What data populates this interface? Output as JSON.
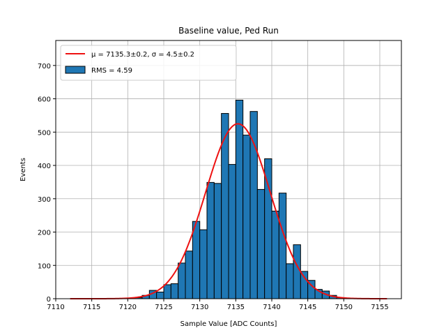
{
  "chart_data": {
    "type": "bar",
    "title": "Baseline value, Ped Run",
    "xlabel": "Sample Value [ADC Counts]",
    "ylabel": "Events",
    "xlim": [
      7110,
      7158
    ],
    "ylim": [
      0,
      775
    ],
    "xticks": [
      7110,
      7115,
      7120,
      7125,
      7130,
      7135,
      7140,
      7145,
      7150,
      7155
    ],
    "yticks": [
      0,
      100,
      200,
      300,
      400,
      500,
      600,
      700
    ],
    "grid": true,
    "legend_position": "top-left",
    "bin_width": 1,
    "bins": [
      7121,
      7122,
      7123,
      7124,
      7125,
      7126,
      7127,
      7128,
      7129,
      7130,
      7131,
      7132,
      7133,
      7134,
      7135,
      7136,
      7137,
      7138,
      7139,
      7140,
      7141,
      7142,
      7143,
      7144,
      7145,
      7146,
      7147,
      7148,
      7149
    ],
    "counts": [
      3,
      10,
      25,
      20,
      42,
      45,
      107,
      143,
      232,
      207,
      349,
      346,
      556,
      403,
      596,
      491,
      562,
      328,
      420,
      263,
      317,
      105,
      162,
      82,
      55,
      28,
      23,
      10,
      3
    ],
    "fit": {
      "mu": 7135.3,
      "sigma": 4.5,
      "peak": 525,
      "x_range": [
        7112,
        7156
      ]
    },
    "series": [
      {
        "name": "$\\mu = 7135.3\\pm0.2$, $\\sigma = 4.5\\pm0.2$",
        "legend_label": "μ = 7135.3±0.2, σ = 4.5±0.2",
        "kind": "line",
        "color": "#ee1111"
      },
      {
        "name": "RMS = 4.59",
        "legend_label": "RMS = 4.59",
        "kind": "bar",
        "color": "#1f77b4",
        "edge_color": "#000000"
      }
    ]
  }
}
